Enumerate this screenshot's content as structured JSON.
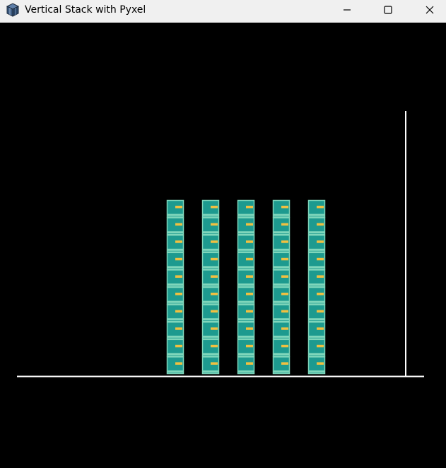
{
  "window": {
    "title": "Vertical Stack with Pyxel",
    "icon": "pyxel-cube-icon",
    "controls": {
      "minimize_icon": "minimize-icon",
      "maximize_icon": "maximize-icon",
      "close_icon": "close-icon"
    }
  },
  "game": {
    "background_color": "#000000",
    "ground_color": "#ffffff",
    "wall_color": "#ffffff",
    "block_colors": {
      "fill": "#1d9a8f",
      "border": "#7fd6bb",
      "divider": "#7fd6bb",
      "marker": "#f1c040"
    },
    "stacks": [
      {
        "column": 1,
        "blocks": 10
      },
      {
        "column": 2,
        "blocks": 10
      },
      {
        "column": 3,
        "blocks": 10
      },
      {
        "column": 4,
        "blocks": 10
      },
      {
        "column": 5,
        "blocks": 10
      }
    ]
  }
}
